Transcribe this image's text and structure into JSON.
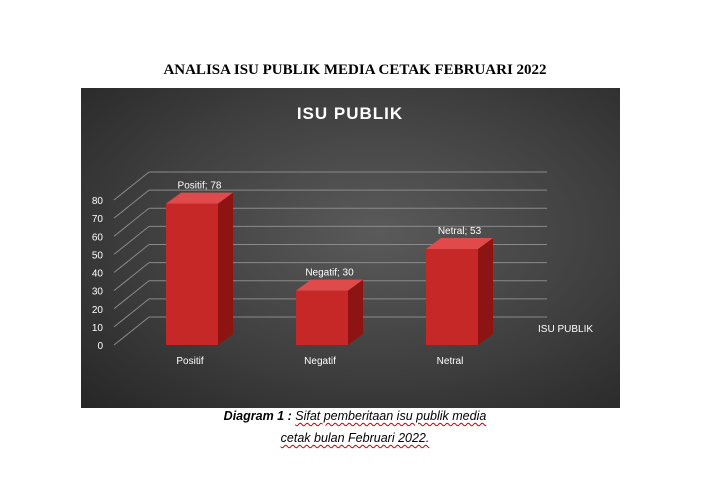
{
  "document": {
    "title": "ANALISA ISU PUBLIK MEDIA CETAK FEBRUARI 2022",
    "caption": {
      "label": "Diagram 1",
      "colon": " : ",
      "line1_rest": "Sifat pemberitaan isu publik media",
      "line2": "cetak bulan Februari 2022."
    }
  },
  "chart_data": {
    "type": "bar",
    "title": "ISU PUBLIK",
    "categories": [
      "Positif",
      "Negatif",
      "Netral"
    ],
    "series": [
      {
        "name": "ISU PUBLIK",
        "values": [
          78,
          30,
          53
        ]
      }
    ],
    "data_labels": [
      "Positif; 78",
      "Negatif; 30",
      "Netral; 53"
    ],
    "ylim": [
      0,
      80
    ],
    "y_ticks": [
      "0",
      "10",
      "20",
      "30",
      "40",
      "50",
      "60",
      "70",
      "80"
    ],
    "grid": true,
    "legend_position": "right",
    "style": "3d-column",
    "colors": {
      "bar_front": "#c62828",
      "bar_side": "#8e1414",
      "bar_top": "#e04a4a",
      "text": "#ffffff",
      "grid": "#8a8a8a"
    }
  }
}
